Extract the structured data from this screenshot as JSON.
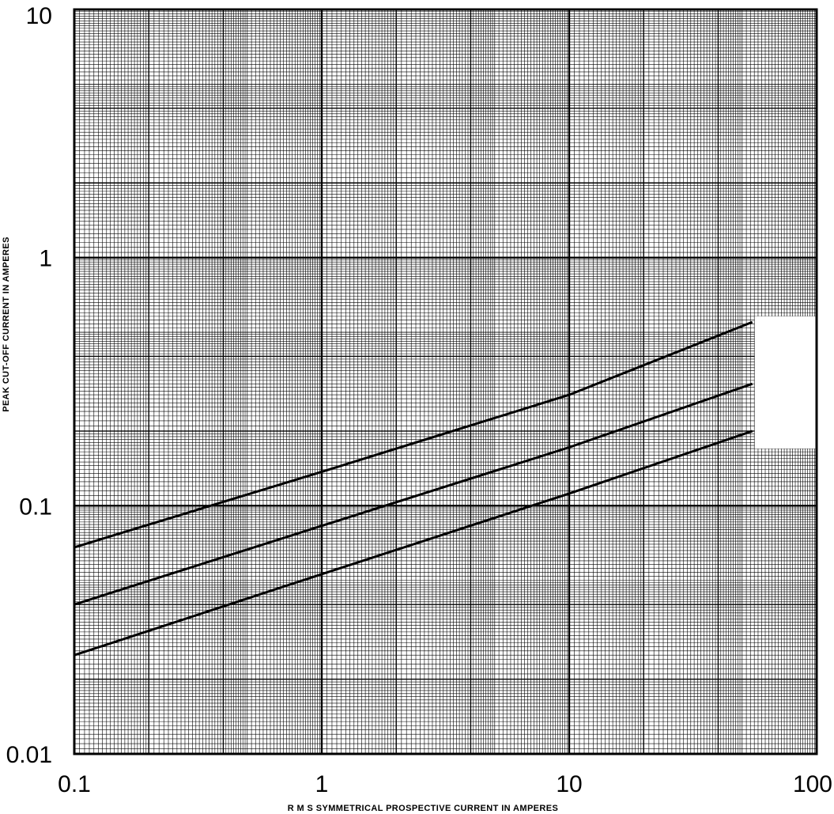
{
  "chart_data": {
    "type": "line",
    "title": "",
    "xlabel": "R M S SYMMETRICAL PROSPECTIVE CURRENT IN AMPERES",
    "ylabel": "PEAK CUT-OFF CURRENT IN AMPERES",
    "xscale": "log",
    "yscale": "log",
    "xlim": [
      0.1,
      100
    ],
    "ylim": [
      0.01,
      10
    ],
    "x_tick_labels": [
      "0.1",
      "1",
      "10",
      "100"
    ],
    "y_tick_labels": [
      "0.01",
      "0.1",
      "1",
      "10"
    ],
    "grid": true,
    "legend": "none",
    "line_color": "#000000",
    "series": [
      {
        "x": [
          0.1,
          1,
          10,
          55
        ],
        "y": [
          0.068,
          0.137,
          0.28,
          0.55
        ]
      },
      {
        "x": [
          0.1,
          1,
          10,
          55
        ],
        "y": [
          0.04,
          0.083,
          0.172,
          0.31
        ]
      },
      {
        "x": [
          0.1,
          1,
          10,
          55
        ],
        "y": [
          0.025,
          0.053,
          0.112,
          0.2
        ]
      }
    ]
  }
}
